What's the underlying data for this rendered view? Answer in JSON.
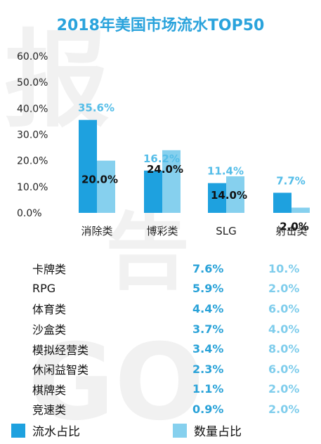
{
  "title": "2018年美国市场流水TOP50",
  "colors": {
    "series_a": "#1ea1df",
    "series_b": "#86d0ee",
    "title": "#2aa3dc"
  },
  "chart_data": {
    "type": "bar",
    "title": "2018年美国市场流水TOP50",
    "categories": [
      "消除类",
      "博彩类",
      "SLG",
      "射击类"
    ],
    "series": [
      {
        "name": "流水占比",
        "values": [
          35.6,
          16.2,
          11.4,
          7.7
        ],
        "labels": [
          "35.6%",
          "16.2%",
          "11.4%",
          "7.7%"
        ]
      },
      {
        "name": "数量占比",
        "values": [
          20.0,
          24.0,
          14.0,
          2.0
        ],
        "labels": [
          "20.0%",
          "24.0%",
          "14.0%",
          "2.0%"
        ]
      }
    ],
    "yticks": [
      "0.0%",
      "10.0%",
      "20.0%",
      "30.0%",
      "40.0%",
      "50.0%",
      "60.0%"
    ],
    "ylim": [
      0,
      60
    ],
    "grid": false
  },
  "table": {
    "rows": [
      {
        "name": "卡牌类",
        "a": "7.6%",
        "b": "10.%"
      },
      {
        "name": "RPG",
        "a": "5.9%",
        "b": "2.0%"
      },
      {
        "name": "体育类",
        "a": "4.4%",
        "b": "6.0%"
      },
      {
        "name": "沙盒类",
        "a": "3.7%",
        "b": "4.0%"
      },
      {
        "name": "模拟经营类",
        "a": "3.4%",
        "b": "8.0%"
      },
      {
        "name": "休闲益智类",
        "a": "2.3%",
        "b": "6.0%"
      },
      {
        "name": "棋牌类",
        "a": "1.1%",
        "b": "2.0%"
      },
      {
        "name": "竞速类",
        "a": "0.9%",
        "b": "2.0%"
      }
    ]
  },
  "legend": [
    {
      "label": "流水占比"
    },
    {
      "label": "数量占比"
    }
  ]
}
